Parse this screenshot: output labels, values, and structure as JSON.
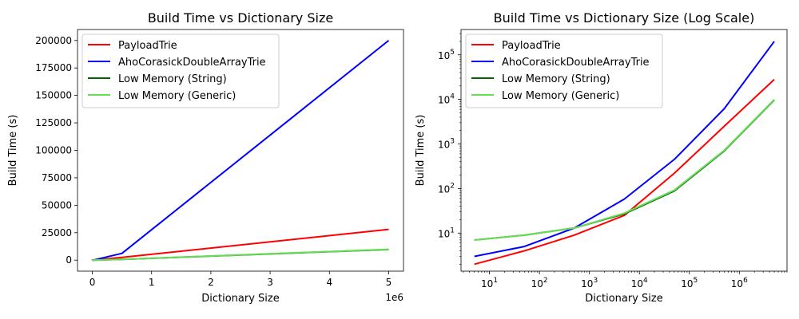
{
  "chart_data": [
    {
      "type": "line",
      "title": "Build Time vs Dictionary Size",
      "xlabel": "Dictionary Size",
      "ylabel": "Build Time (s)",
      "x_offset_label": "1e6",
      "xscale": "linear",
      "yscale": "linear",
      "xlim": [
        -250000,
        5250000
      ],
      "ylim": [
        -10000,
        210000
      ],
      "xticks": [
        0,
        1000000,
        2000000,
        3000000,
        4000000,
        5000000
      ],
      "xtick_labels": [
        "0",
        "1",
        "2",
        "3",
        "4",
        "5"
      ],
      "yticks": [
        0,
        25000,
        50000,
        75000,
        100000,
        125000,
        150000,
        175000,
        200000
      ],
      "ytick_labels": [
        "0",
        "25000",
        "50000",
        "75000",
        "100000",
        "125000",
        "150000",
        "175000",
        "200000"
      ],
      "legend_position": "upper-left",
      "grid": false,
      "x": [
        5,
        50,
        500,
        5000,
        50000,
        500000,
        5000000
      ],
      "series": [
        {
          "name": "PayloadTrie",
          "color": "#ff0000",
          "values": [
            2,
            4,
            9,
            25,
            220,
            2500,
            28000
          ]
        },
        {
          "name": "AhoCorasickDoubleArrayTrie",
          "color": "#0000ff",
          "values": [
            3,
            5,
            13,
            58,
            450,
            6200,
            200000
          ]
        },
        {
          "name": "Low Memory (String)",
          "color": "#006400",
          "values": [
            7,
            9,
            13,
            27,
            88,
            700,
            9700
          ]
        },
        {
          "name": "Low Memory (Generic)",
          "color": "#66dd55",
          "values": [
            7,
            9,
            13,
            28,
            92,
            720,
            9900
          ]
        }
      ]
    },
    {
      "type": "line",
      "title": "Build Time vs Dictionary Size (Log Scale)",
      "xlabel": "Dictionary Size",
      "ylabel": "Build Time (s)",
      "xscale": "log",
      "yscale": "log",
      "xlim": [
        2.7,
        9000000
      ],
      "ylim": [
        1.4,
        370000
      ],
      "xticks": [
        10,
        100,
        1000,
        10000,
        100000,
        1000000
      ],
      "xtick_labels": [
        [
          "10",
          "1"
        ],
        [
          "10",
          "2"
        ],
        [
          "10",
          "3"
        ],
        [
          "10",
          "4"
        ],
        [
          "10",
          "5"
        ],
        [
          "10",
          "6"
        ]
      ],
      "yticks": [
        10,
        100,
        1000,
        10000,
        100000
      ],
      "ytick_labels": [
        [
          "10",
          "1"
        ],
        [
          "10",
          "2"
        ],
        [
          "10",
          "3"
        ],
        [
          "10",
          "4"
        ],
        [
          "10",
          "5"
        ]
      ],
      "legend_position": "upper-left",
      "grid": false,
      "x": [
        5,
        50,
        500,
        5000,
        50000,
        500000,
        5000000
      ],
      "series": [
        {
          "name": "PayloadTrie",
          "color": "#ff0000",
          "values": [
            2,
            4,
            9,
            25,
            220,
            2500,
            28000
          ]
        },
        {
          "name": "AhoCorasickDoubleArrayTrie",
          "color": "#0000ff",
          "values": [
            3,
            5,
            13,
            58,
            450,
            6200,
            200000
          ]
        },
        {
          "name": "Low Memory (String)",
          "color": "#006400",
          "values": [
            7,
            9,
            13,
            27,
            88,
            700,
            9700
          ]
        },
        {
          "name": "Low Memory (Generic)",
          "color": "#66dd55",
          "values": [
            7,
            9,
            13,
            28,
            92,
            720,
            9900
          ]
        }
      ]
    }
  ]
}
